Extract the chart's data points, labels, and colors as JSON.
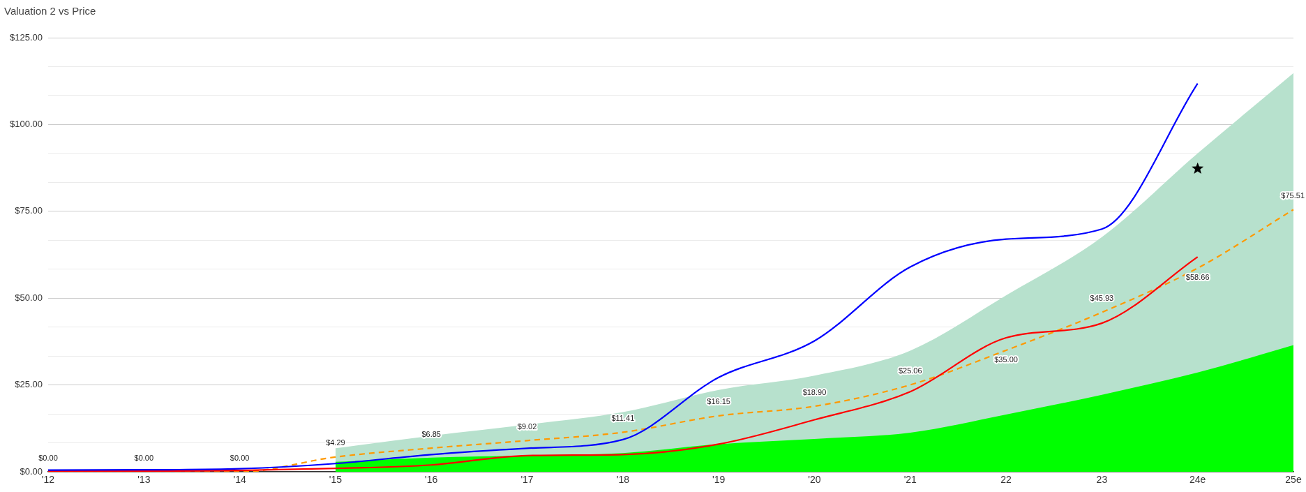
{
  "chart_data": {
    "type": "line",
    "title": "Valuation 2 vs Price",
    "categories": [
      "'12",
      "'13",
      "'14",
      "'15",
      "'16",
      "'17",
      "'18",
      "'19",
      "'20",
      "'21",
      "22",
      "23",
      "24e",
      "25e"
    ],
    "ylim": [
      0,
      125
    ],
    "yticks": [
      {
        "value": 0,
        "label": "$0.00"
      },
      {
        "value": 8.33,
        "label": null
      },
      {
        "value": 16.67,
        "label": null
      },
      {
        "value": 25,
        "label": "$25.00"
      },
      {
        "value": 33.33,
        "label": null
      },
      {
        "value": 41.67,
        "label": null
      },
      {
        "value": 50,
        "label": "$50.00"
      },
      {
        "value": 58.33,
        "label": null
      },
      {
        "value": 66.67,
        "label": null
      },
      {
        "value": 75,
        "label": "$75.00"
      },
      {
        "value": 83.33,
        "label": null
      },
      {
        "value": 91.67,
        "label": null
      },
      {
        "value": 100,
        "label": "$100.00"
      },
      {
        "value": 108.33,
        "label": null
      },
      {
        "value": 116.67,
        "label": null
      },
      {
        "value": 125,
        "label": "$125.00"
      }
    ],
    "grid": "y",
    "legend": false,
    "series": [
      {
        "type": "area",
        "color": "#b7e1cd",
        "marker": "none",
        "values": [
          null,
          null,
          null,
          6.8,
          10.4,
          13.6,
          17.2,
          23.6,
          27.7,
          34.9,
          50.8,
          67.6,
          91.7,
          114.8
        ]
      },
      {
        "type": "area",
        "color": "#00ff00",
        "marker": "none",
        "values": [
          null,
          null,
          null,
          2.9,
          4.1,
          4.7,
          5.4,
          8.0,
          9.5,
          11.3,
          16.5,
          22.2,
          28.6,
          36.5
        ]
      },
      {
        "type": "line",
        "color": "#ff9900",
        "marker": "none",
        "line_style": "dashed",
        "values": [
          0,
          0,
          0,
          4.29,
          6.85,
          9.02,
          11.41,
          16.15,
          18.9,
          25.06,
          35.0,
          45.93,
          58.66,
          75.51
        ],
        "value_labels": [
          "$0.00",
          "$0.00",
          "$0.00",
          "$4.29",
          "$6.85",
          "$9.02",
          "$11.41",
          "$16.15",
          "$18.90",
          "$25.06",
          "$35.00",
          "$45.93",
          "$58.66",
          "$75.51"
        ]
      },
      {
        "type": "line",
        "color": "#ff0000",
        "marker": "none",
        "line_style": "solid",
        "values": [
          0.2,
          0.2,
          0.4,
          1.0,
          2.0,
          4.7,
          5.0,
          8.0,
          15.0,
          23.1,
          38.6,
          42.8,
          61.9,
          null
        ]
      },
      {
        "type": "line",
        "color": "#0000ff",
        "marker": "none",
        "line_style": "solid",
        "values": [
          0.5,
          0.6,
          0.9,
          2.4,
          5.0,
          6.8,
          9.3,
          27.2,
          37.7,
          59.0,
          67.0,
          69.9,
          111.8,
          null
        ]
      },
      {
        "type": "scatter",
        "color": "#000000",
        "marker": "star",
        "x": [
          "24e"
        ],
        "values": [
          87.3
        ]
      }
    ]
  }
}
